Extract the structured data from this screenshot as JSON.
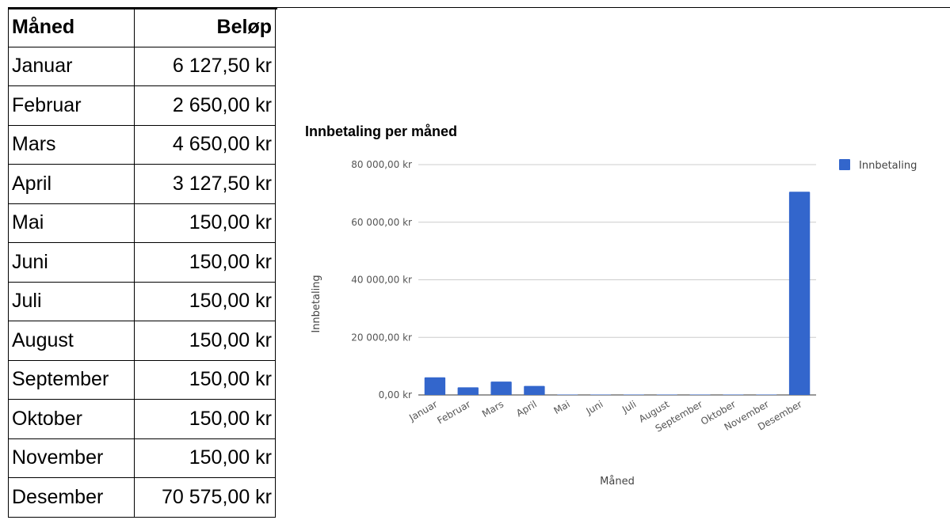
{
  "table": {
    "header_month": "Måned",
    "header_amount": "Beløp",
    "rows": [
      {
        "month": "Januar",
        "amount": "6 127,50 kr"
      },
      {
        "month": "Februar",
        "amount": "2 650,00 kr"
      },
      {
        "month": "Mars",
        "amount": "4 650,00 kr"
      },
      {
        "month": "April",
        "amount": "3 127,50 kr"
      },
      {
        "month": "Mai",
        "amount": "150,00 kr"
      },
      {
        "month": "Juni",
        "amount": "150,00 kr"
      },
      {
        "month": "Juli",
        "amount": "150,00 kr"
      },
      {
        "month": "August",
        "amount": "150,00 kr"
      },
      {
        "month": "September",
        "amount": "150,00 kr"
      },
      {
        "month": "Oktober",
        "amount": "150,00 kr"
      },
      {
        "month": "November",
        "amount": "150,00 kr"
      },
      {
        "month": "Desember",
        "amount": "70 575,00 kr"
      }
    ]
  },
  "chart_data": {
    "type": "bar",
    "title": "Innbetaling per måned",
    "xlabel": "Måned",
    "ylabel": "Innbetaling",
    "categories": [
      "Januar",
      "Februar",
      "Mars",
      "April",
      "Mai",
      "Juni",
      "Juli",
      "August",
      "September",
      "Oktober",
      "November",
      "Desember"
    ],
    "series": [
      {
        "name": "Innbetaling",
        "color": "#3366cc",
        "values": [
          6127.5,
          2650,
          4650,
          3127.5,
          150,
          150,
          150,
          150,
          150,
          150,
          150,
          70575
        ]
      }
    ],
    "ylim": [
      0,
      80000
    ],
    "yticks": [
      0,
      20000,
      40000,
      60000,
      80000
    ],
    "ytick_labels": [
      "0,00 kr",
      "20 000,00 kr",
      "40 000,00 kr",
      "60 000,00 kr",
      "80 000,00 kr"
    ],
    "grid": true,
    "legend": "right"
  }
}
